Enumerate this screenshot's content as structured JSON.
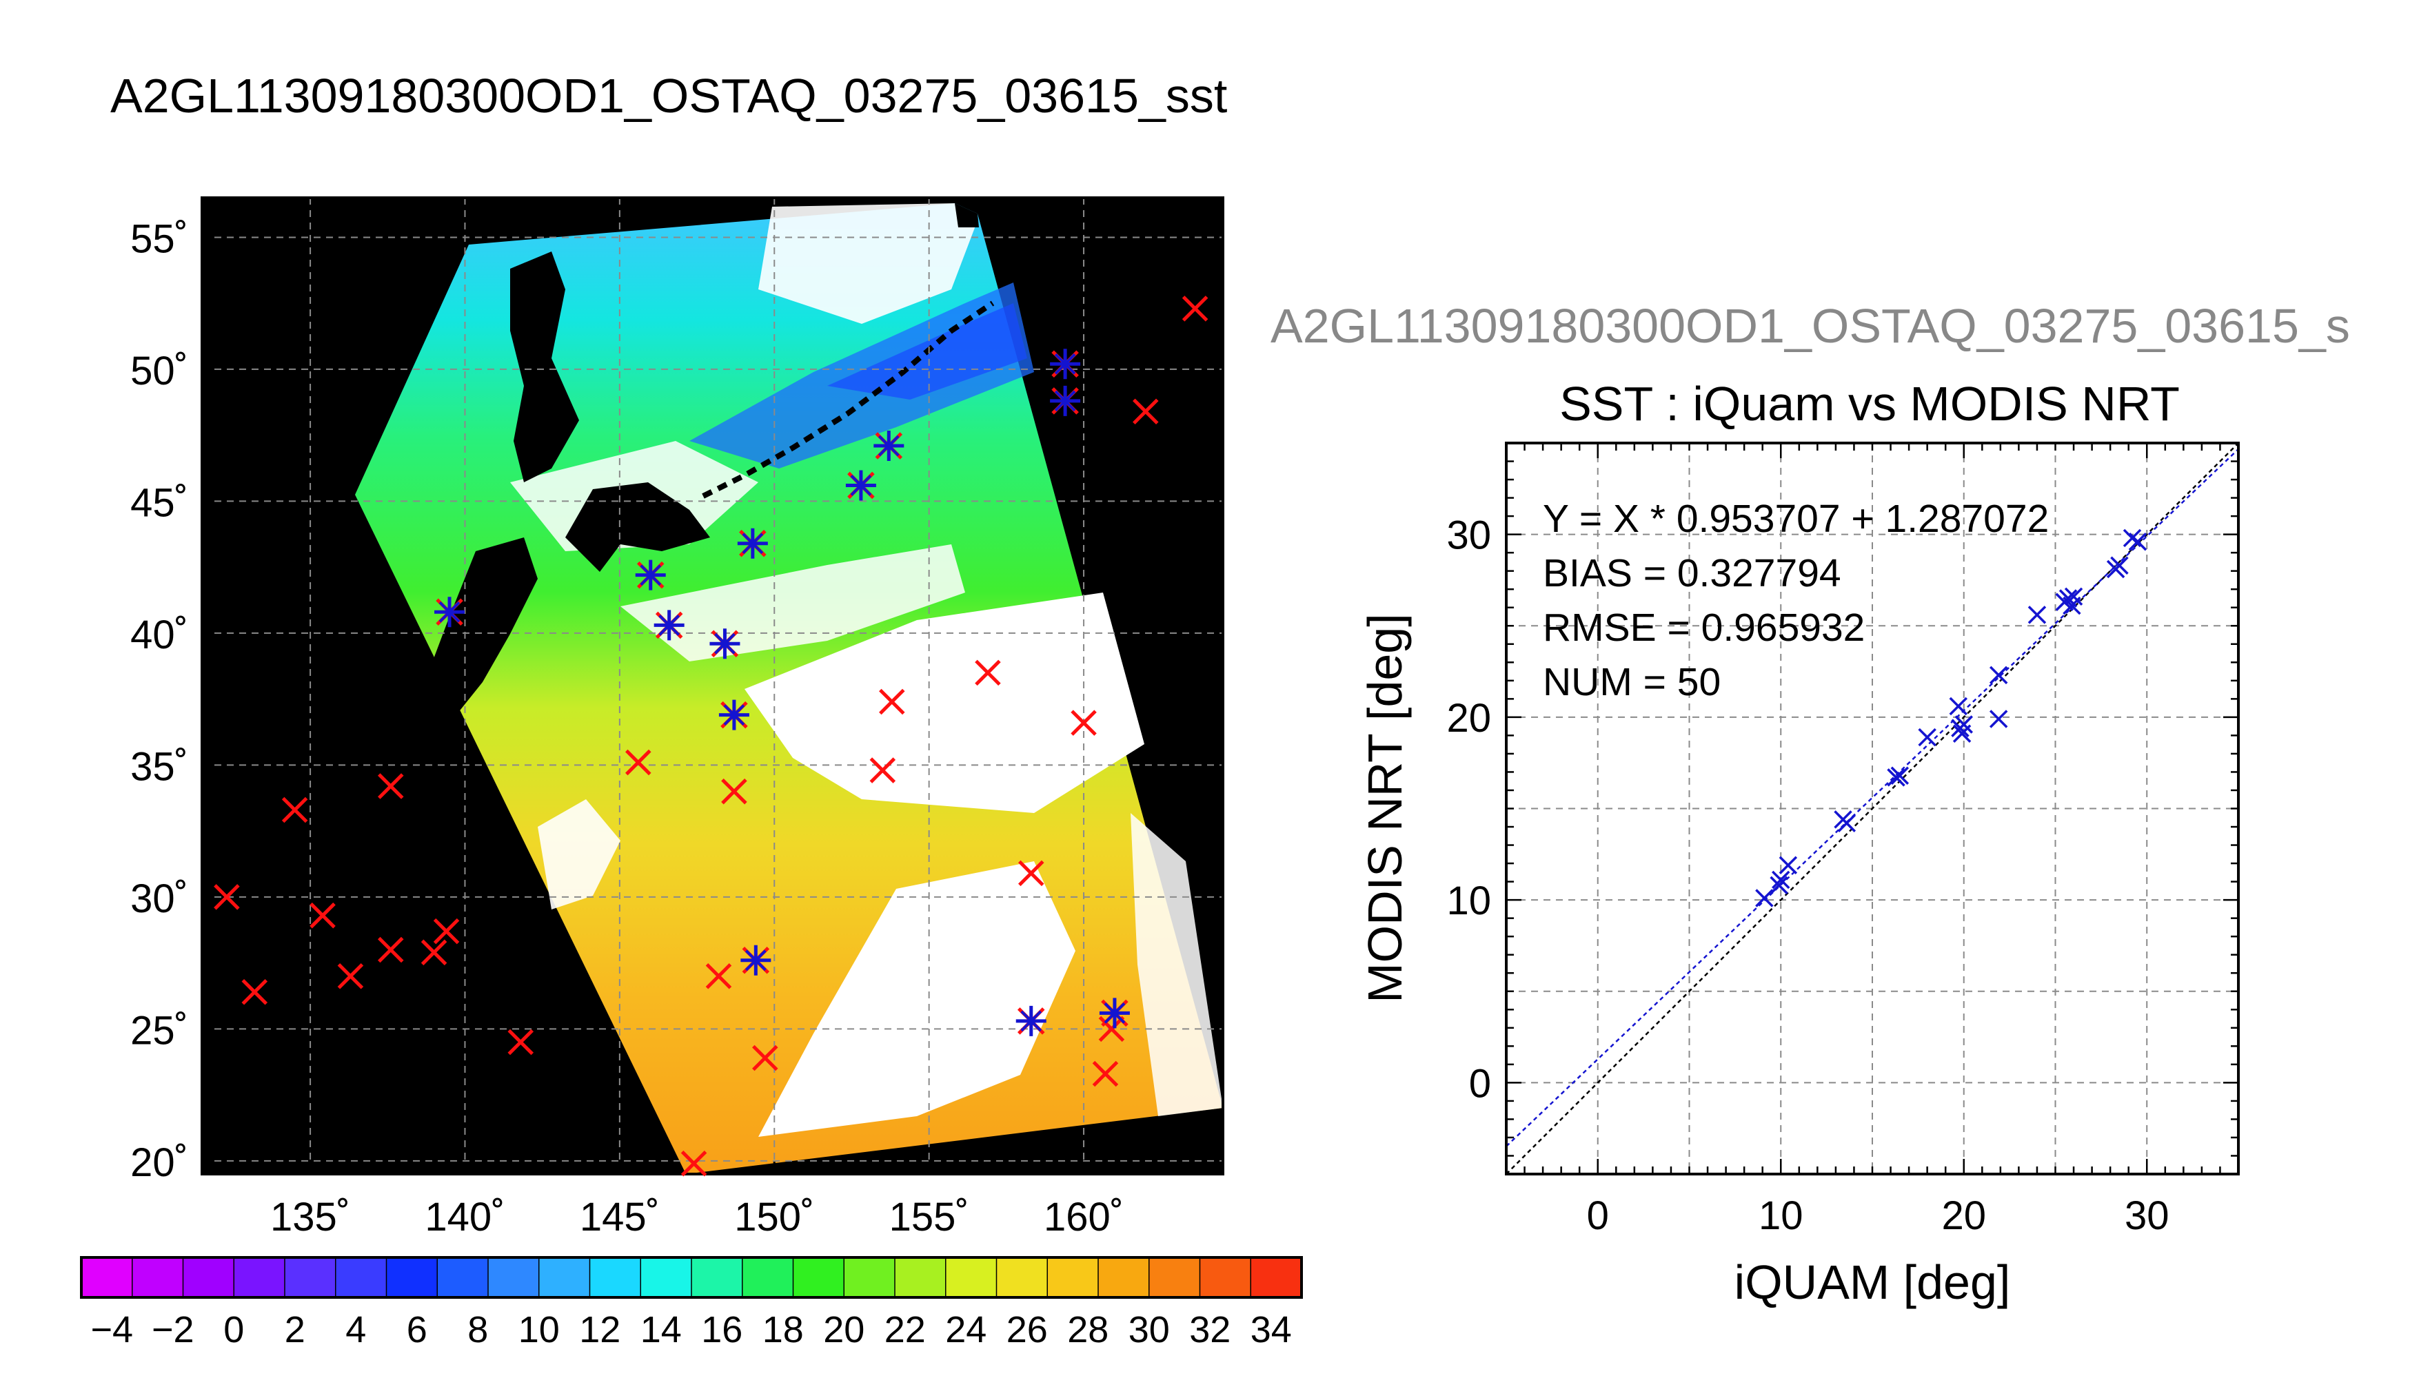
{
  "page_title": "A2GL11309180300OD1_OSTAQ_03275_03615_sst",
  "chart_data": [
    {
      "type": "map",
      "title": "A2GL11309180300OD1_OSTAQ_03275_03615_sst",
      "lon_range": [
        131.5,
        164.5
      ],
      "lat_range": [
        19.5,
        56.5
      ],
      "lon_ticks": [
        135,
        140,
        145,
        150,
        155,
        160
      ],
      "lat_ticks": [
        20,
        25,
        30,
        35,
        40,
        45,
        50,
        55
      ],
      "lon_tick_labels": [
        "135˚",
        "140˚",
        "145˚",
        "150˚",
        "155˚",
        "160˚"
      ],
      "lat_tick_labels": [
        "20˚",
        "25˚",
        "30˚",
        "35˚",
        "40˚",
        "45˚",
        "50˚",
        "55˚"
      ],
      "grid": true,
      "colorbar": {
        "min": -5,
        "max": 35,
        "tick_labels": [
          "−4",
          "−2",
          "0",
          "2",
          "4",
          "6",
          "8",
          "10",
          "12",
          "14",
          "16",
          "18",
          "20",
          "22",
          "24",
          "26",
          "28",
          "30",
          "32",
          "34"
        ],
        "colors": [
          "#e000ff",
          "#c000ff",
          "#a000ff",
          "#7a14ff",
          "#5a30ff",
          "#3a3cff",
          "#1030ff",
          "#1d5cff",
          "#2e88ff",
          "#2eb0ff",
          "#1ad8ff",
          "#18f5e8",
          "#1cf5a8",
          "#20f05a",
          "#30f020",
          "#70f020",
          "#a8f020",
          "#d8f020",
          "#f0e020",
          "#f8c818",
          "#f8a810",
          "#f88010",
          "#f85a10",
          "#f83010"
        ]
      },
      "matched_points": [
        {
          "lon": 139.5,
          "lat": 40.8
        },
        {
          "lon": 146.0,
          "lat": 42.2
        },
        {
          "lon": 146.6,
          "lat": 40.3
        },
        {
          "lon": 148.4,
          "lat": 39.6
        },
        {
          "lon": 148.7,
          "lat": 36.9
        },
        {
          "lon": 149.3,
          "lat": 43.4
        },
        {
          "lon": 152.8,
          "lat": 45.6
        },
        {
          "lon": 153.7,
          "lat": 47.1
        },
        {
          "lon": 159.4,
          "lat": 50.2
        },
        {
          "lon": 159.4,
          "lat": 48.8
        },
        {
          "lon": 149.4,
          "lat": 27.6
        },
        {
          "lon": 158.3,
          "lat": 25.3
        },
        {
          "lon": 161.0,
          "lat": 25.6
        }
      ],
      "unmatched_points": [
        {
          "lon": 132.3,
          "lat": 30.0
        },
        {
          "lon": 133.2,
          "lat": 26.4
        },
        {
          "lon": 134.5,
          "lat": 33.3
        },
        {
          "lon": 135.4,
          "lat": 29.3
        },
        {
          "lon": 136.3,
          "lat": 27.0
        },
        {
          "lon": 137.6,
          "lat": 28.0
        },
        {
          "lon": 137.6,
          "lat": 34.2
        },
        {
          "lon": 139.4,
          "lat": 28.7
        },
        {
          "lon": 139.0,
          "lat": 27.9
        },
        {
          "lon": 141.8,
          "lat": 24.5
        },
        {
          "lon": 145.6,
          "lat": 35.1
        },
        {
          "lon": 148.7,
          "lat": 34.0
        },
        {
          "lon": 148.2,
          "lat": 27.0
        },
        {
          "lon": 149.7,
          "lat": 23.9
        },
        {
          "lon": 147.4,
          "lat": 19.9
        },
        {
          "lon": 153.8,
          "lat": 37.4
        },
        {
          "lon": 153.5,
          "lat": 34.8
        },
        {
          "lon": 156.9,
          "lat": 38.5
        },
        {
          "lon": 158.3,
          "lat": 30.9
        },
        {
          "lon": 160.0,
          "lat": 36.6
        },
        {
          "lon": 160.7,
          "lat": 23.3
        },
        {
          "lon": 160.9,
          "lat": 25.0
        },
        {
          "lon": 162.0,
          "lat": 48.4
        },
        {
          "lon": 163.6,
          "lat": 52.3
        }
      ]
    },
    {
      "type": "scatter",
      "header": "A2GL11309180300OD1_OSTAQ_03275_03615_s",
      "title": "SST : iQuam vs MODIS NRT",
      "xlabel": "iQUAM [deg]",
      "ylabel": "MODIS NRT [deg]",
      "xlim": [
        -5,
        35
      ],
      "ylim": [
        -5,
        35
      ],
      "x_ticks": [
        0,
        10,
        20,
        30
      ],
      "y_ticks": [
        0,
        10,
        20,
        30
      ],
      "grid": true,
      "stats": [
        "Y = X * 0.953707 + 1.287072",
        "BIAS = 0.327794",
        "RMSE = 0.965932",
        "NUM = 50"
      ],
      "fit": {
        "slope": 0.953707,
        "intercept": 1.287072
      },
      "reference_line": "y = x",
      "points": [
        {
          "x": 9.1,
          "y": 10.1
        },
        {
          "x": 9.9,
          "y": 10.8
        },
        {
          "x": 10.0,
          "y": 11.1
        },
        {
          "x": 10.4,
          "y": 11.9
        },
        {
          "x": 13.4,
          "y": 14.4
        },
        {
          "x": 13.6,
          "y": 14.2
        },
        {
          "x": 16.3,
          "y": 16.7
        },
        {
          "x": 16.5,
          "y": 16.8
        },
        {
          "x": 18.0,
          "y": 18.9
        },
        {
          "x": 19.7,
          "y": 20.6
        },
        {
          "x": 19.8,
          "y": 19.4
        },
        {
          "x": 19.9,
          "y": 19.1
        },
        {
          "x": 20.0,
          "y": 19.6
        },
        {
          "x": 21.9,
          "y": 22.3
        },
        {
          "x": 21.9,
          "y": 19.9
        },
        {
          "x": 24.0,
          "y": 25.6
        },
        {
          "x": 25.5,
          "y": 26.3
        },
        {
          "x": 25.7,
          "y": 26.5
        },
        {
          "x": 25.9,
          "y": 26.1
        },
        {
          "x": 26.0,
          "y": 26.6
        },
        {
          "x": 28.3,
          "y": 28.1
        },
        {
          "x": 28.5,
          "y": 28.3
        },
        {
          "x": 29.2,
          "y": 29.8
        },
        {
          "x": 29.5,
          "y": 29.6
        }
      ]
    }
  ]
}
